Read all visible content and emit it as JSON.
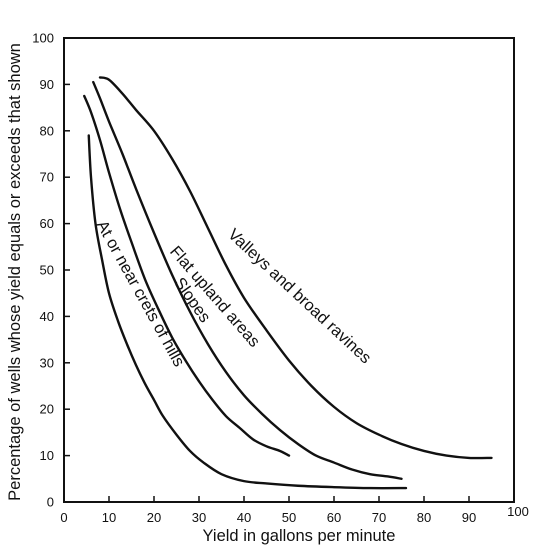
{
  "chart_data": {
    "type": "line",
    "title": "",
    "xlabel": "Yield in gallons per minute",
    "ylabel": "Percentage of wells whose yield equals or exceeds that shown",
    "xlim": [
      0,
      100
    ],
    "ylim": [
      0,
      100
    ],
    "xticks": [
      0,
      10,
      20,
      30,
      40,
      50,
      60,
      70,
      80,
      90,
      100
    ],
    "yticks": [
      0,
      10,
      20,
      30,
      40,
      50,
      60,
      70,
      80,
      90,
      100
    ],
    "grid": false,
    "series": [
      {
        "name": "At or near crets of hills",
        "x": [
          5.5,
          6,
          7,
          8.5,
          10,
          12,
          14,
          16,
          18,
          20,
          22,
          25,
          28,
          31,
          35,
          40,
          45,
          52,
          60,
          68,
          76
        ],
        "y": [
          79,
          70,
          60,
          52,
          45,
          39,
          34,
          29.5,
          25.5,
          22,
          18.5,
          14.5,
          11,
          8.5,
          6,
          4.5,
          4,
          3.5,
          3.2,
          3.0,
          3.0
        ]
      },
      {
        "name": "Slopes",
        "x": [
          4.5,
          6,
          8,
          10,
          12.5,
          15,
          18,
          21,
          24,
          27,
          30,
          33,
          36,
          39,
          42,
          45,
          48,
          50
        ],
        "y": [
          87.5,
          84,
          78,
          71,
          63,
          56,
          48,
          41.5,
          35.5,
          30.5,
          26,
          22,
          18.5,
          16,
          13.5,
          12,
          11,
          10
        ]
      },
      {
        "name": "Flat upland areas",
        "x": [
          6.5,
          8,
          10,
          13,
          16,
          20,
          24,
          28,
          32,
          36,
          40,
          44,
          48,
          52,
          56,
          60,
          64,
          68,
          72,
          75
        ],
        "y": [
          90.5,
          87,
          82,
          75,
          67.5,
          58,
          49,
          41,
          34,
          28,
          23,
          19,
          15.5,
          12.5,
          10,
          8.5,
          7,
          6,
          5.5,
          5
        ]
      },
      {
        "name": "Valleys and broad ravines",
        "x": [
          8,
          10,
          13,
          16,
          20,
          24,
          28,
          32,
          36,
          40,
          45,
          50,
          55,
          60,
          65,
          70,
          75,
          80,
          85,
          90,
          95
        ],
        "y": [
          91.5,
          91,
          88,
          84.5,
          80,
          74,
          67,
          59,
          51,
          44,
          37,
          30.5,
          25,
          20.5,
          17,
          14.5,
          12.5,
          11,
          10,
          9.5,
          9.5
        ]
      }
    ],
    "annotations": [
      {
        "series_index": 0,
        "text": "At or near crets of hills"
      },
      {
        "series_index": 1,
        "text": "Slopes"
      },
      {
        "series_index": 2,
        "text": "Flat upland areas"
      },
      {
        "series_index": 3,
        "text": "Valleys and broad ravines"
      }
    ]
  }
}
